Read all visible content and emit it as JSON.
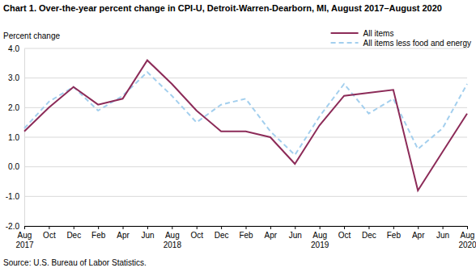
{
  "chart_data": {
    "type": "line",
    "title": "Chart 1. Over-the-year percent change in CPI-U, Detroit-Warren-Dearborn, MI, August 2017–August 2020",
    "y_label": "Percent change",
    "source": "Source: U.S. Bureau of Labor Statistics.",
    "categories": [
      "Aug 2017",
      "Oct",
      "Dec",
      "Feb",
      "Apr",
      "Jun",
      "Aug 2018",
      "Oct",
      "Dec",
      "Feb",
      "Apr",
      "Jun",
      "Aug 2019",
      "Oct",
      "Dec",
      "Feb",
      "Apr",
      "Jun",
      "Aug 2020"
    ],
    "series": [
      {
        "name": "All items",
        "color": "#8c2b58",
        "line_style": "solid",
        "values": [
          1.2,
          2.0,
          2.7,
          2.1,
          2.3,
          3.6,
          2.8,
          1.9,
          1.2,
          1.2,
          1.0,
          0.1,
          1.4,
          2.4,
          2.5,
          2.6,
          -0.8,
          0.5,
          1.8
        ]
      },
      {
        "name": "All items less food and energy",
        "color": "#a3cfee",
        "line_style": "dashed",
        "values": [
          1.3,
          2.2,
          2.7,
          1.9,
          2.4,
          3.2,
          2.4,
          1.5,
          2.1,
          2.3,
          1.2,
          0.4,
          1.7,
          2.8,
          1.8,
          2.3,
          0.6,
          1.3,
          2.8
        ]
      }
    ],
    "ylim": [
      -2,
      4
    ],
    "yticks": [
      {
        "value": -2,
        "label": "-2.0"
      },
      {
        "value": -1,
        "label": "-1.0"
      },
      {
        "value": 0,
        "label": "0.0"
      },
      {
        "value": 1,
        "label": "1.0"
      },
      {
        "value": 2,
        "label": "2.0"
      },
      {
        "value": 3,
        "label": "3.0"
      },
      {
        "value": 4,
        "label": "4.0"
      }
    ],
    "grid": true,
    "legend": "top-right"
  }
}
